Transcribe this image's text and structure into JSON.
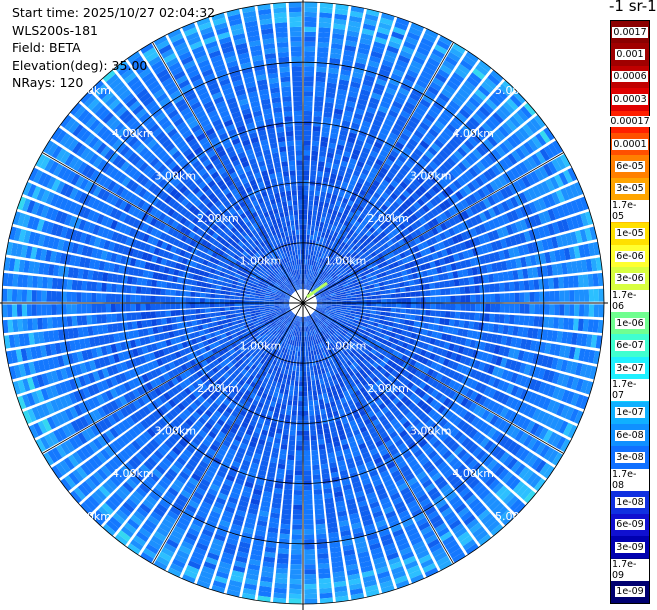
{
  "info": {
    "start_time": "Start time: 2025/10/27 02:04:32",
    "instrument": "WLS200s-181",
    "field": "Field: BETA",
    "elevation": "Elevation(deg): 35.00",
    "nrays": "NRays: 120"
  },
  "colorbar": {
    "title": "-1 sr-1",
    "labels": [
      "0.0017",
      "0.001",
      "0.0006",
      "0.0003",
      "0.00017",
      "0.0001",
      "6e-05",
      "3e-05",
      "1.7e-05",
      "1e-05",
      "6e-06",
      "3e-06",
      "1.7e-06",
      "1e-06",
      "6e-07",
      "3e-07",
      "1.7e-07",
      "1e-07",
      "6e-08",
      "3e-08",
      "1.7e-08",
      "1e-08",
      "6e-09",
      "3e-09",
      "1.7e-09",
      "1e-09"
    ],
    "colors": [
      "#8b0000",
      "#a00000",
      "#c00000",
      "#e00000",
      "#ff2000",
      "#ff5000",
      "#ff8000",
      "#ffa500",
      "#ffc000",
      "#ffe000",
      "#ffff30",
      "#d8ff40",
      "#a0ff60",
      "#70ff90",
      "#40ffd0",
      "#20f0ff",
      "#10d0ff",
      "#10b0ff",
      "#1090ff",
      "#1070ff",
      "#1050f0",
      "#1030e0",
      "#1010d0",
      "#0000b0",
      "#000090",
      "#000070"
    ]
  },
  "range_rings": [
    "1.00km",
    "2.00km",
    "3.00km",
    "4.00km",
    "5.00km"
  ]
}
